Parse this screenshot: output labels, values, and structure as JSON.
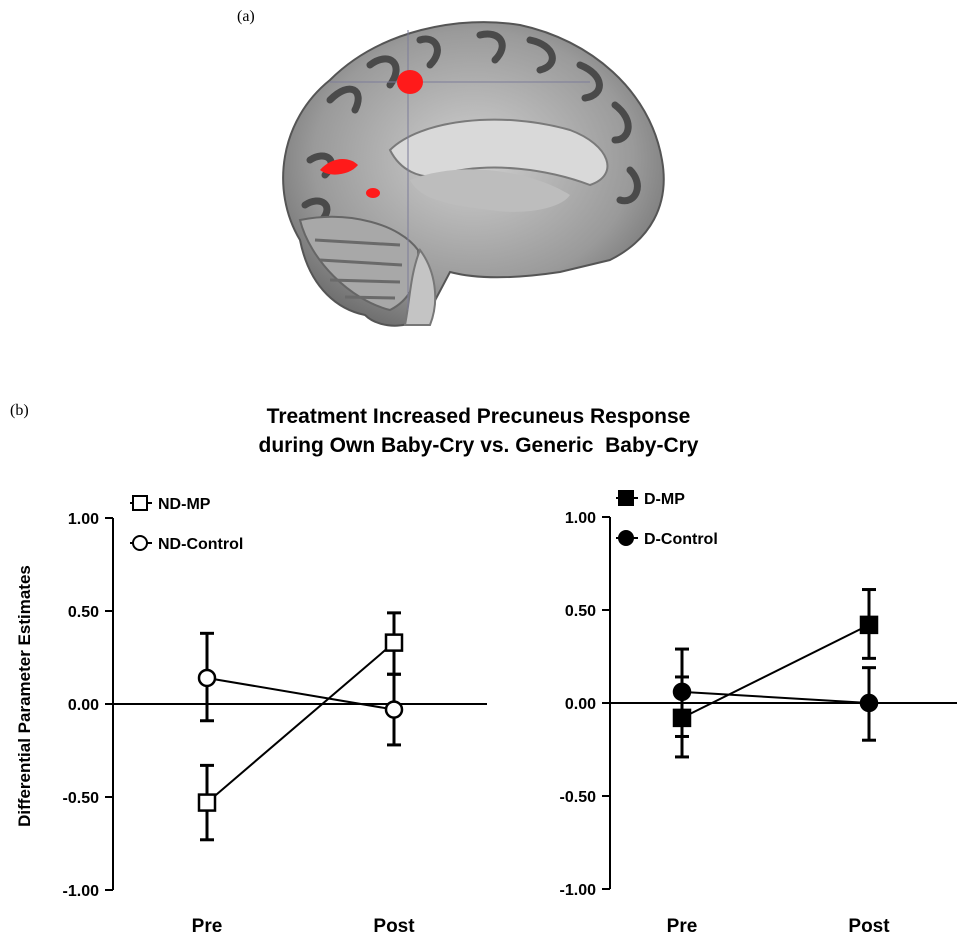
{
  "figure": {
    "panel_a_label": "(a)",
    "panel_b_label": "(b)",
    "title_line1": "Treatment Increased Precuneus Response",
    "title_line2": "during Own Baby-Cry vs. Generic  Baby-Cry"
  },
  "chart_data": [
    {
      "type": "line",
      "panel": "left",
      "categories": [
        "Pre",
        "Post"
      ],
      "ylabel": "Differential Parameter Estimates",
      "ylim": [
        -1.0,
        1.0
      ],
      "yticks": [
        "1.00",
        "0.50",
        "0.00",
        "-0.50",
        "-1.00"
      ],
      "legend_position": "top-left",
      "series": [
        {
          "name": "ND-MP",
          "marker": "square",
          "filled": false,
          "values": [
            -0.53,
            0.33
          ],
          "err_low": [
            -0.73,
            0.16
          ],
          "err_high": [
            -0.33,
            0.49
          ]
        },
        {
          "name": "ND-Control",
          "marker": "circle",
          "filled": false,
          "values": [
            0.14,
            -0.03
          ],
          "err_low": [
            -0.09,
            -0.22
          ],
          "err_high": [
            0.38,
            0.16
          ]
        }
      ]
    },
    {
      "type": "line",
      "panel": "right",
      "categories": [
        "Pre",
        "Post"
      ],
      "ylabel": "",
      "ylim": [
        -1.0,
        1.0
      ],
      "yticks": [
        "1.00",
        "0.50",
        "0.00",
        "-0.50",
        "-1.00"
      ],
      "legend_position": "top-left",
      "series": [
        {
          "name": "D-MP",
          "marker": "square",
          "filled": true,
          "values": [
            -0.08,
            0.42
          ],
          "err_low": [
            -0.29,
            0.24
          ],
          "err_high": [
            0.14,
            0.61
          ]
        },
        {
          "name": "D-Control",
          "marker": "circle",
          "filled": true,
          "values": [
            0.06,
            0.0
          ],
          "err_low": [
            -0.18,
            -0.2
          ],
          "err_high": [
            0.29,
            0.19
          ]
        }
      ]
    }
  ]
}
